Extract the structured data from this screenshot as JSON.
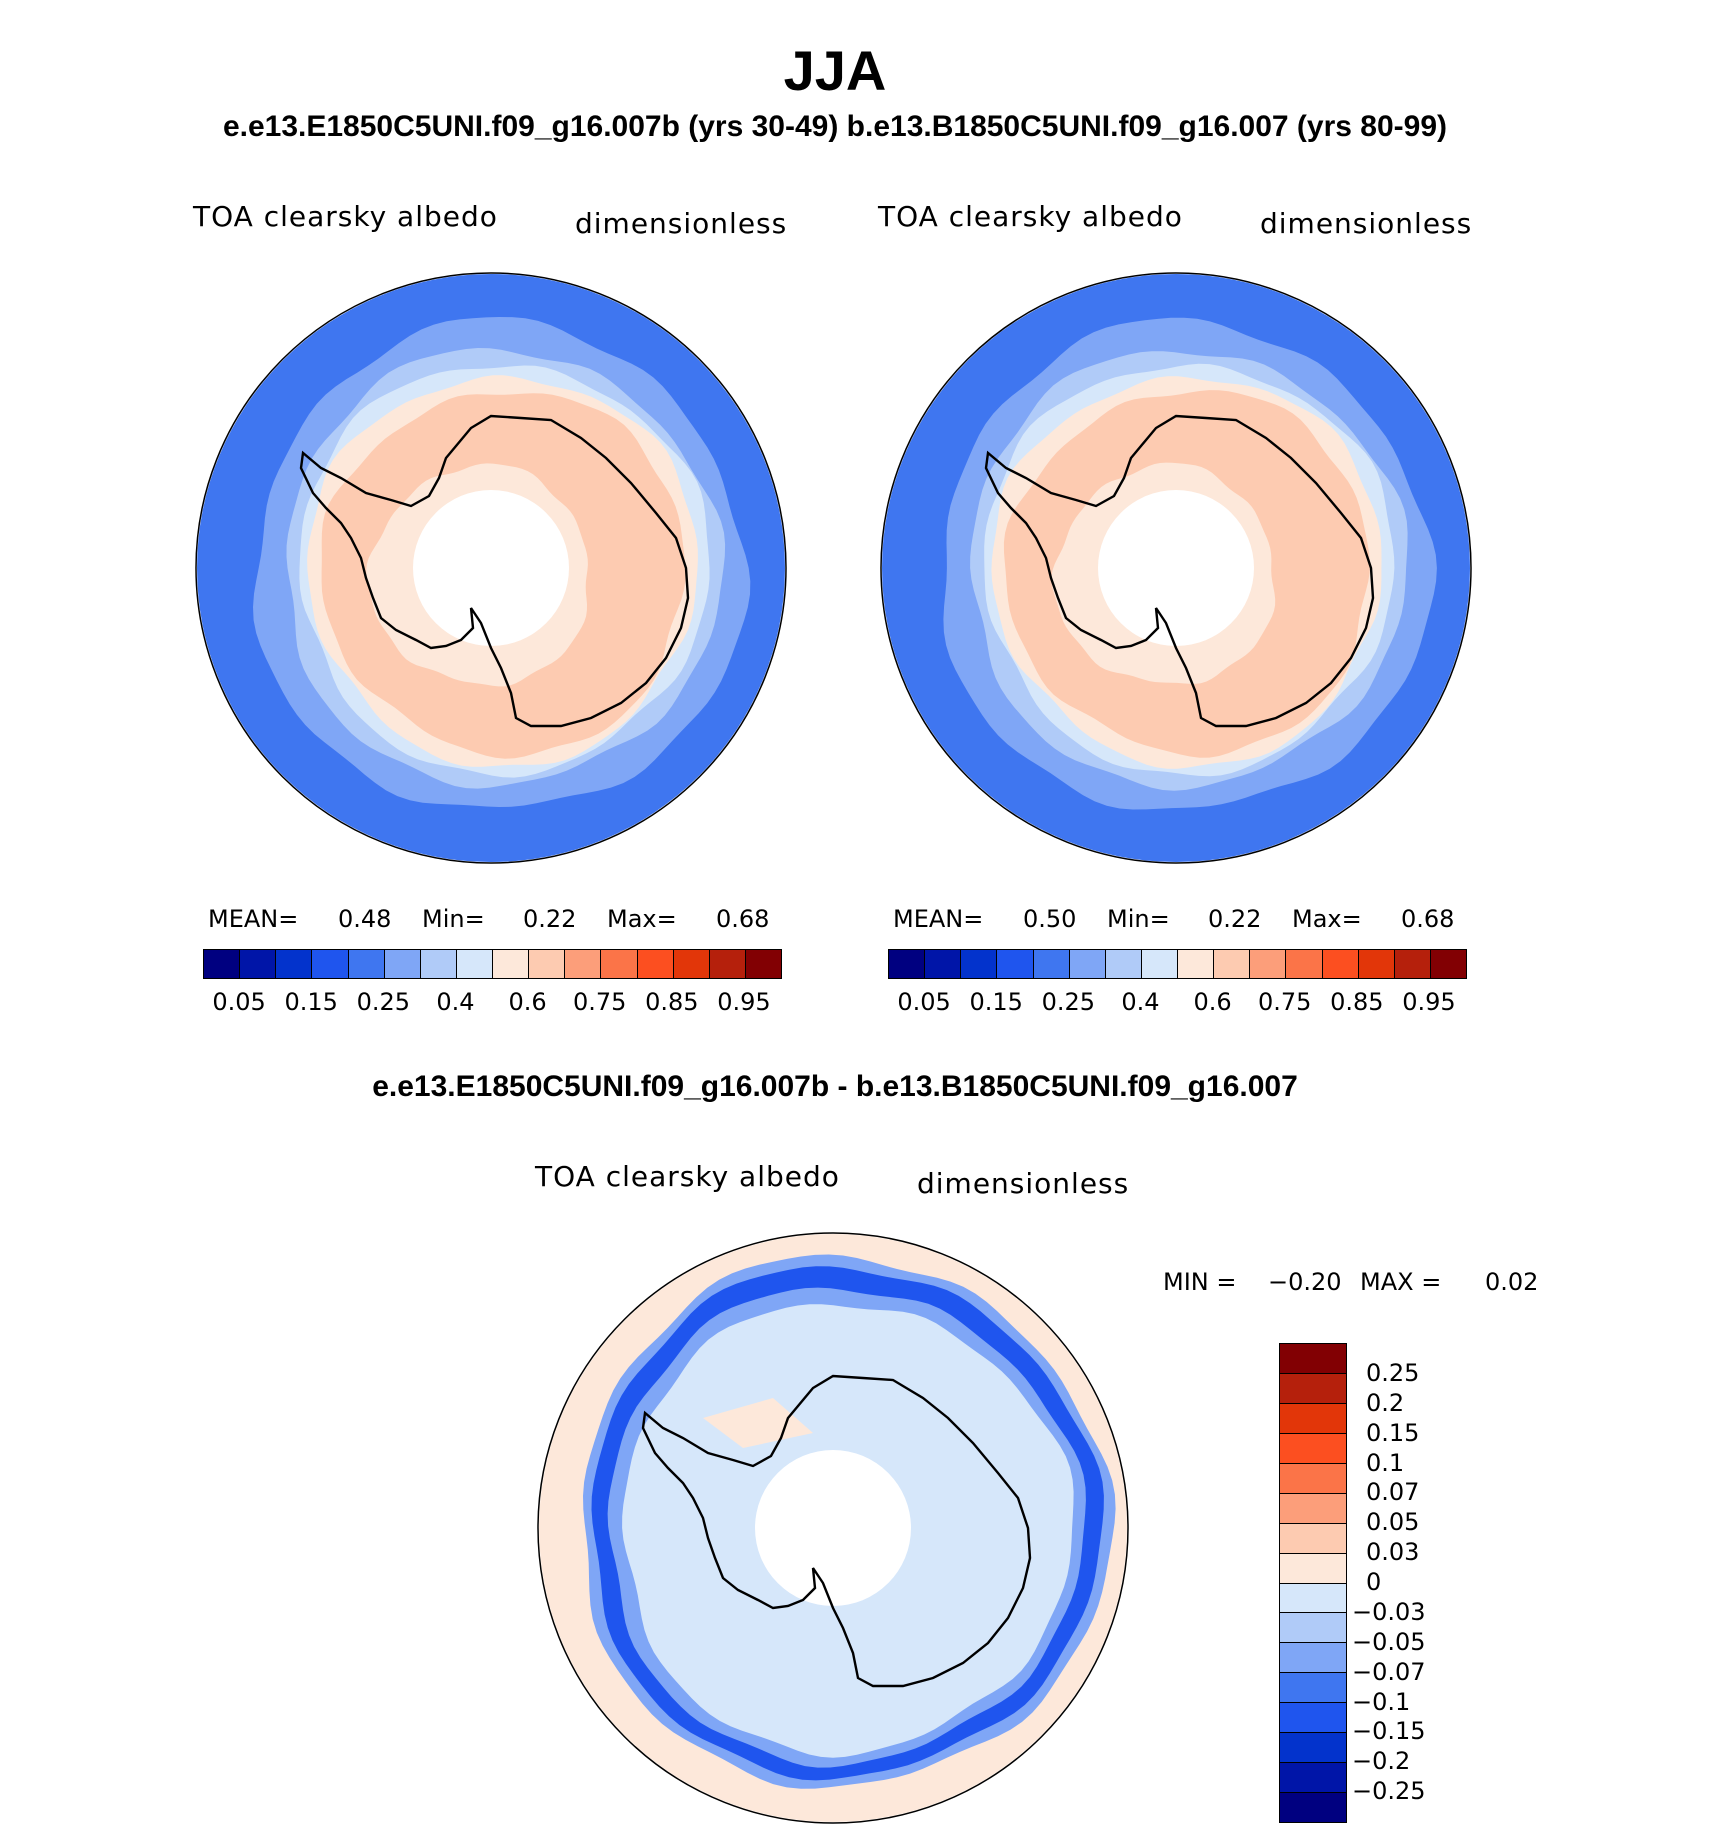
{
  "main_title": "JJA",
  "sub_title": "e.e13.E1850C5UNI.f09_g16.007b (yrs 30-49)  b.e13.B1850C5UNI.f09_g16.007 (yrs 80-99)",
  "diff_title": "e.e13.E1850C5UNI.f09_g16.007b - b.e13.B1850C5UNI.f09_g16.007",
  "panels": [
    {
      "variable": "TOA clearsky albedo",
      "units": "dimensionless",
      "mean_label": "MEAN=",
      "mean": "0.48",
      "min_label": "Min=",
      "min": "0.22",
      "max_label": "Max=",
      "max": "0.68"
    },
    {
      "variable": "TOA clearsky albedo",
      "units": "dimensionless",
      "mean_label": "MEAN=",
      "mean": "0.50",
      "min_label": "Min=",
      "min": "0.22",
      "max_label": "Max=",
      "max": "0.68"
    }
  ],
  "diff_panel": {
    "variable": "TOA clearsky albedo",
    "units": "dimensionless",
    "min_label": "MIN =",
    "min": "−0.20",
    "max_label": "MAX =",
    "max": "0.02"
  },
  "abs_colorbar": {
    "colors": [
      "#000080",
      "#0015a8",
      "#0333cc",
      "#1f55ee",
      "#3f76f0",
      "#7fa6f6",
      "#b0cbf8",
      "#d6e7fa",
      "#fde8da",
      "#fdcbb1",
      "#fc9e7a",
      "#fb7448",
      "#fc4f20",
      "#e23609",
      "#b5200c",
      "#820003"
    ],
    "tick_labels": [
      "0.05",
      "0.15",
      "0.25",
      "0.4",
      "0.6",
      "0.75",
      "0.85",
      "0.95"
    ]
  },
  "diff_colorbar": {
    "colors_top_to_bottom": [
      "#820003",
      "#b5200c",
      "#e23609",
      "#fc4f20",
      "#fb7448",
      "#fc9e7a",
      "#fdcbb1",
      "#fde8da",
      "#d6e7fa",
      "#b0cbf8",
      "#7fa6f6",
      "#3f76f0",
      "#1f55ee",
      "#0333cc",
      "#0015a8",
      "#000080"
    ],
    "tick_labels": [
      "0.25",
      "0.2",
      "0.15",
      "0.1",
      "0.07",
      "0.05",
      "0.03",
      "0",
      "−0.03",
      "−0.05",
      "−0.07",
      "−0.1",
      "−0.15",
      "−0.2",
      "−0.25"
    ]
  },
  "map_colors": {
    "ocean_outer": "#3f76f0",
    "ocean_mid": "#7fa6f6",
    "ocean_light": "#b0cbf8",
    "ocean_pale": "#d6e7fa",
    "sea_ice": "#fde8da",
    "ice_sheet": "#fdcbb1",
    "diff_band": "#1f55ee",
    "diff_bg": "#d6e7fa",
    "diff_pos": "#fde8da",
    "coast": "#000000"
  }
}
